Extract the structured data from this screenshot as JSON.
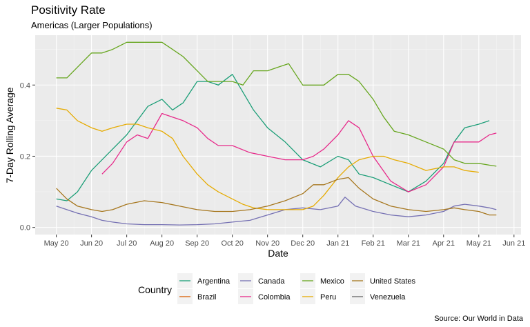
{
  "chart_data": {
    "type": "line",
    "title": "Positivity Rate",
    "subtitle": "Americas (Larger Populations)",
    "xlabel": "Date",
    "ylabel": "7-Day Rolling Average",
    "caption": "Source:  Our World in Data",
    "x_ticks": [
      "May 20",
      "Jun 20",
      "Jul 20",
      "Aug 20",
      "Sep 20",
      "Oct 20",
      "Nov 20",
      "Dec 20",
      "Jan 21",
      "Feb 21",
      "Mar 21",
      "Apr 21",
      "May 21",
      "Jun 21"
    ],
    "y_ticks": [
      "0.0",
      "0.2",
      "0.4"
    ],
    "ylim": [
      -0.02,
      0.54
    ],
    "xlim": [
      -0.6,
      13.2
    ],
    "grid": true,
    "legend": {
      "title": "Country",
      "position": "bottom"
    },
    "series": [
      {
        "name": "Argentina",
        "color": "#1b9e77",
        "x": [
          0,
          0.3,
          0.6,
          1,
          1.3,
          1.6,
          2,
          2.3,
          2.6,
          3,
          3.3,
          3.6,
          4,
          4.3,
          4.6,
          5,
          5.3,
          5.6,
          6,
          6.5,
          7,
          7.5,
          8,
          8.3,
          8.6,
          9,
          9.5,
          10,
          10.5,
          11,
          11.3,
          11.6,
          12,
          12.3
        ],
        "y": [
          0.08,
          0.075,
          0.1,
          0.16,
          0.19,
          0.22,
          0.26,
          0.3,
          0.34,
          0.36,
          0.33,
          0.35,
          0.41,
          0.41,
          0.4,
          0.43,
          0.38,
          0.33,
          0.28,
          0.24,
          0.19,
          0.17,
          0.2,
          0.19,
          0.15,
          0.14,
          0.12,
          0.1,
          0.13,
          0.18,
          0.24,
          0.28,
          0.29,
          0.3
        ]
      },
      {
        "name": "Brazil",
        "color": "#d95f02",
        "x": [],
        "y": []
      },
      {
        "name": "Canada",
        "color": "#7570b3",
        "x": [
          0,
          0.3,
          0.6,
          1,
          1.3,
          1.6,
          2,
          2.5,
          3,
          3.5,
          4,
          4.5,
          5,
          5.5,
          6,
          6.5,
          7,
          7.5,
          8,
          8.2,
          8.5,
          9,
          9.5,
          10,
          10.5,
          11,
          11.3,
          11.6,
          12,
          12.3,
          12.5
        ],
        "y": [
          0.06,
          0.05,
          0.04,
          0.03,
          0.02,
          0.015,
          0.01,
          0.008,
          0.008,
          0.007,
          0.008,
          0.01,
          0.015,
          0.02,
          0.035,
          0.05,
          0.055,
          0.05,
          0.06,
          0.085,
          0.06,
          0.045,
          0.035,
          0.03,
          0.035,
          0.045,
          0.06,
          0.065,
          0.06,
          0.055,
          0.05
        ]
      },
      {
        "name": "Colombia",
        "color": "#e7298a",
        "x": [
          1.3,
          1.6,
          2,
          2.3,
          2.6,
          3,
          3.3,
          3.6,
          4,
          4.3,
          4.6,
          5,
          5.5,
          6,
          6.5,
          7,
          7.3,
          7.6,
          8,
          8.3,
          8.6,
          9,
          9.5,
          10,
          10.5,
          11,
          11.3,
          11.6,
          12,
          12.3,
          12.5
        ],
        "y": [
          0.15,
          0.18,
          0.24,
          0.26,
          0.25,
          0.32,
          0.31,
          0.3,
          0.28,
          0.25,
          0.23,
          0.23,
          0.21,
          0.2,
          0.19,
          0.19,
          0.2,
          0.22,
          0.26,
          0.3,
          0.28,
          0.2,
          0.13,
          0.1,
          0.12,
          0.17,
          0.24,
          0.24,
          0.24,
          0.26,
          0.265
        ]
      },
      {
        "name": "Mexico",
        "color": "#66a61e",
        "x": [
          0,
          0.3,
          0.6,
          1,
          1.3,
          1.6,
          2,
          2.3,
          2.6,
          3,
          3.3,
          3.6,
          4,
          4.3,
          4.6,
          5,
          5.3,
          5.6,
          6,
          6.3,
          6.6,
          7,
          7.3,
          7.6,
          8,
          8.3,
          8.6,
          9,
          9.3,
          9.6,
          10,
          10.5,
          11,
          11.3,
          11.6,
          12,
          12.3,
          12.5
        ],
        "y": [
          0.42,
          0.42,
          0.45,
          0.49,
          0.49,
          0.5,
          0.52,
          0.52,
          0.52,
          0.52,
          0.5,
          0.48,
          0.44,
          0.41,
          0.41,
          0.41,
          0.4,
          0.44,
          0.44,
          0.45,
          0.46,
          0.4,
          0.4,
          0.4,
          0.43,
          0.43,
          0.41,
          0.36,
          0.31,
          0.27,
          0.26,
          0.24,
          0.22,
          0.19,
          0.18,
          0.18,
          0.175,
          0.172
        ]
      },
      {
        "name": "Peru",
        "color": "#e6ab02",
        "x": [
          0,
          0.3,
          0.6,
          1,
          1.3,
          1.6,
          2,
          2.3,
          2.6,
          3,
          3.3,
          3.6,
          4,
          4.3,
          4.6,
          5,
          5.3,
          5.6,
          6,
          6.3,
          6.6,
          7,
          7.3,
          7.6,
          8,
          8.3,
          8.6,
          9,
          9.3,
          9.6,
          10,
          10.5,
          11,
          11.3,
          11.6,
          12
        ],
        "y": [
          0.335,
          0.33,
          0.3,
          0.28,
          0.27,
          0.28,
          0.29,
          0.29,
          0.28,
          0.27,
          0.25,
          0.2,
          0.15,
          0.12,
          0.1,
          0.08,
          0.065,
          0.055,
          0.05,
          0.05,
          0.05,
          0.05,
          0.06,
          0.09,
          0.14,
          0.17,
          0.19,
          0.2,
          0.2,
          0.19,
          0.18,
          0.16,
          0.17,
          0.17,
          0.16,
          0.155
        ]
      },
      {
        "name": "United States",
        "color": "#a6761d",
        "x": [
          0,
          0.3,
          0.6,
          1,
          1.3,
          1.6,
          2,
          2.5,
          3,
          3.5,
          4,
          4.5,
          5,
          5.5,
          6,
          6.5,
          7,
          7.3,
          7.6,
          8,
          8.3,
          8.6,
          9,
          9.5,
          10,
          10.5,
          11,
          11.3,
          11.6,
          12,
          12.3,
          12.5
        ],
        "y": [
          0.11,
          0.08,
          0.06,
          0.05,
          0.045,
          0.05,
          0.065,
          0.075,
          0.07,
          0.06,
          0.05,
          0.045,
          0.045,
          0.05,
          0.06,
          0.075,
          0.095,
          0.12,
          0.12,
          0.135,
          0.14,
          0.11,
          0.08,
          0.06,
          0.05,
          0.045,
          0.05,
          0.055,
          0.05,
          0.045,
          0.035,
          0.035
        ]
      },
      {
        "name": "Venezuela",
        "color": "#666666",
        "x": [],
        "y": []
      }
    ]
  }
}
